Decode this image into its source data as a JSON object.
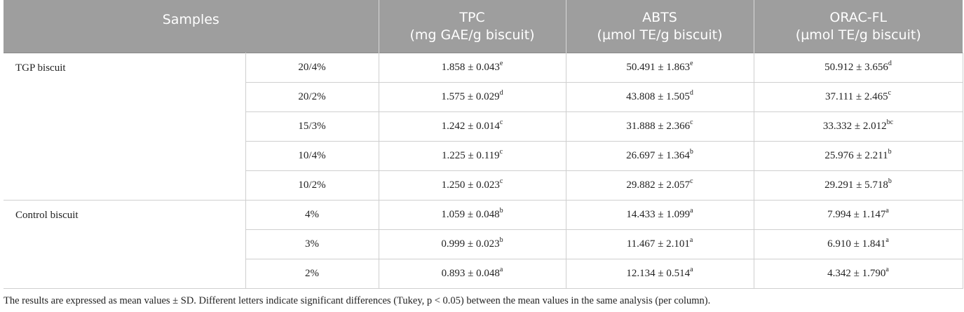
{
  "table": {
    "header": {
      "samples": "Samples",
      "columns": [
        {
          "title": "TPC",
          "unit": "(mg GAE/g biscuit)"
        },
        {
          "title": "ABTS",
          "unit": "(µmol TE/g biscuit)"
        },
        {
          "title": "ORAC-FL",
          "unit": "(µmol TE/g biscuit)"
        }
      ]
    },
    "groups": [
      {
        "label": "TGP biscuit",
        "rows": [
          {
            "sample": "20/4%",
            "cells": [
              {
                "value": "1.858 ± 0.043",
                "sup": "e"
              },
              {
                "value": "50.491 ± 1.863",
                "sup": "e"
              },
              {
                "value": "50.912 ± 3.656",
                "sup": "d"
              }
            ]
          },
          {
            "sample": "20/2%",
            "cells": [
              {
                "value": "1.575 ± 0.029",
                "sup": "d"
              },
              {
                "value": "43.808 ± 1.505",
                "sup": "d"
              },
              {
                "value": "37.111 ± 2.465",
                "sup": "c"
              }
            ]
          },
          {
            "sample": "15/3%",
            "cells": [
              {
                "value": "1.242 ± 0.014",
                "sup": "c"
              },
              {
                "value": "31.888 ± 2.366",
                "sup": "c"
              },
              {
                "value": "33.332 ± 2.012",
                "sup": "bc"
              }
            ]
          },
          {
            "sample": "10/4%",
            "cells": [
              {
                "value": "1.225 ± 0.119",
                "sup": "c"
              },
              {
                "value": "26.697 ± 1.364",
                "sup": "b"
              },
              {
                "value": "25.976 ± 2.211",
                "sup": "b"
              }
            ]
          },
          {
            "sample": "10/2%",
            "cells": [
              {
                "value": "1.250 ± 0.023",
                "sup": "c"
              },
              {
                "value": "29.882 ± 2.057",
                "sup": "c"
              },
              {
                "value": "29.291 ± 5.718",
                "sup": "b"
              }
            ]
          }
        ]
      },
      {
        "label": "Control biscuit",
        "rows": [
          {
            "sample": "4%",
            "cells": [
              {
                "value": "1.059 ± 0.048",
                "sup": "b"
              },
              {
                "value": "14.433 ± 1.099",
                "sup": "a"
              },
              {
                "value": "7.994 ± 1.147",
                "sup": "a"
              }
            ]
          },
          {
            "sample": "3%",
            "cells": [
              {
                "value": "0.999 ± 0.023",
                "sup": "b"
              },
              {
                "value": "11.467 ± 2.101",
                "sup": "a"
              },
              {
                "value": "6.910 ± 1.841",
                "sup": "a"
              }
            ]
          },
          {
            "sample": "2%",
            "cells": [
              {
                "value": "0.893 ± 0.048",
                "sup": "a"
              },
              {
                "value": "12.134 ± 0.514",
                "sup": "a"
              },
              {
                "value": "4.342 ± 1.790",
                "sup": "a"
              }
            ]
          }
        ]
      }
    ],
    "footnote": "The results are expressed as mean values ± SD. Different letters indicate significant differences (Tukey, p < 0.05) between the mean values in the same analysis (per column)."
  }
}
